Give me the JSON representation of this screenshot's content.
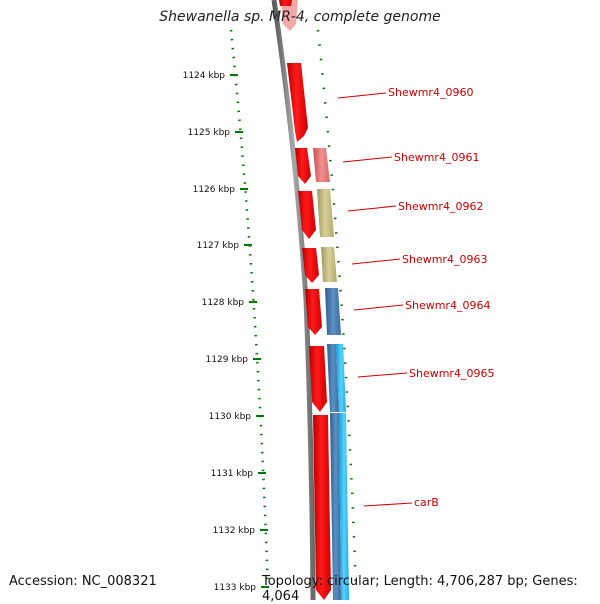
{
  "title": "Shewanella sp. MR-4, complete genome",
  "footer": {
    "accession": "Accession: NC_008321",
    "summary": "Topology: circular; Length: 4,706,287 bp; Genes: 4,064"
  },
  "ticks": [
    "1124 kbp",
    "1125 kbp",
    "1126 kbp",
    "1127 kbp",
    "1128 kbp",
    "1129 kbp",
    "1130 kbp",
    "1131 kbp",
    "1132 kbp",
    "1133 kbp"
  ],
  "genes": [
    {
      "label": "Shewmr4_0960"
    },
    {
      "label": "Shewmr4_0961"
    },
    {
      "label": "Shewmr4_0962"
    },
    {
      "label": "Shewmr4_0963"
    },
    {
      "label": "Shewmr4_0964"
    },
    {
      "label": "Shewmr4_0965"
    },
    {
      "label": "carB"
    }
  ],
  "colors": {
    "label_red": "#cc0000",
    "cds_red": "#ff0000",
    "backbone": "#808080",
    "tick_green": "#007700",
    "pink": "#e87878",
    "olive": "#c8c080",
    "steel_blue": "#4a7fb0",
    "cyan": "#22b8ee"
  }
}
